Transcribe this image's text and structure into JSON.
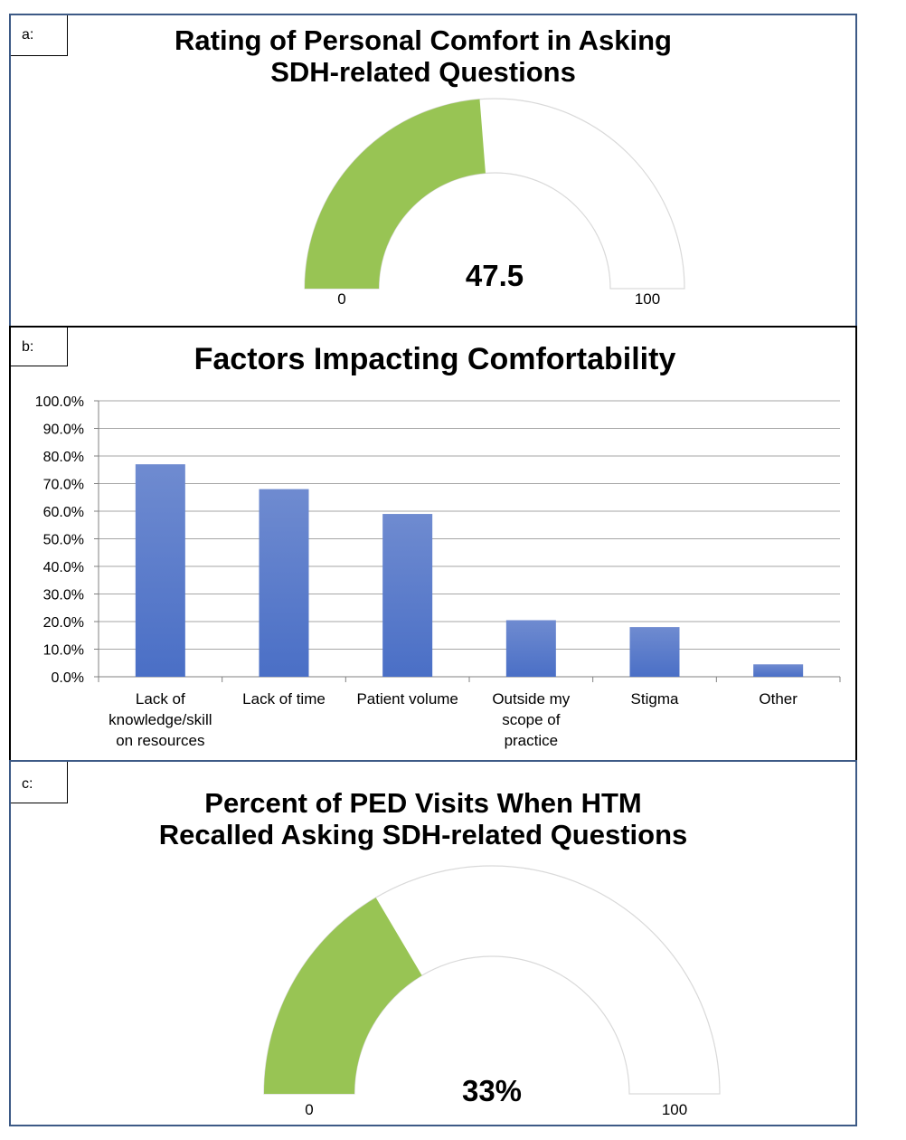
{
  "panels": {
    "a": {
      "tag": "a:"
    },
    "b": {
      "tag": "b:"
    },
    "c": {
      "tag": "c:"
    }
  },
  "colors": {
    "gauge_fill": "#98c454",
    "gauge_track": "#d9d9d9",
    "bar": "#4a6fc6"
  },
  "chart_data": [
    {
      "type": "gauge",
      "title": "Rating of Personal Comfort in Asking SDH-related Questions",
      "value": 47.5,
      "value_label": "47.5",
      "min": 0,
      "max": 100,
      "min_label": "0",
      "max_label": "100"
    },
    {
      "type": "bar",
      "title": "Factors Impacting Comfortability",
      "categories": [
        "Lack of knowledge/skill on resources",
        "Lack of time",
        "Patient volume",
        "Outside my scope of practice",
        "Stigma",
        "Other"
      ],
      "category_lines": [
        [
          "Lack of",
          "knowledge/skill",
          "on resources"
        ],
        [
          "Lack of time"
        ],
        [
          "Patient volume"
        ],
        [
          "Outside my",
          "scope of",
          "practice"
        ],
        [
          "Stigma"
        ],
        [
          "Other"
        ]
      ],
      "values": [
        77.0,
        68.0,
        59.0,
        20.5,
        18.0,
        4.5
      ],
      "ylim": [
        0,
        100
      ],
      "yticks": [
        "0.0%",
        "10.0%",
        "20.0%",
        "30.0%",
        "40.0%",
        "50.0%",
        "60.0%",
        "70.0%",
        "80.0%",
        "90.0%",
        "100.0%"
      ],
      "grid": true,
      "legend": "none"
    },
    {
      "type": "gauge",
      "title": "Percent of PED Visits When HTM Recalled Asking SDH-related Questions",
      "value": 33,
      "value_label": "33%",
      "min": 0,
      "max": 100,
      "min_label": "0",
      "max_label": "100"
    }
  ]
}
